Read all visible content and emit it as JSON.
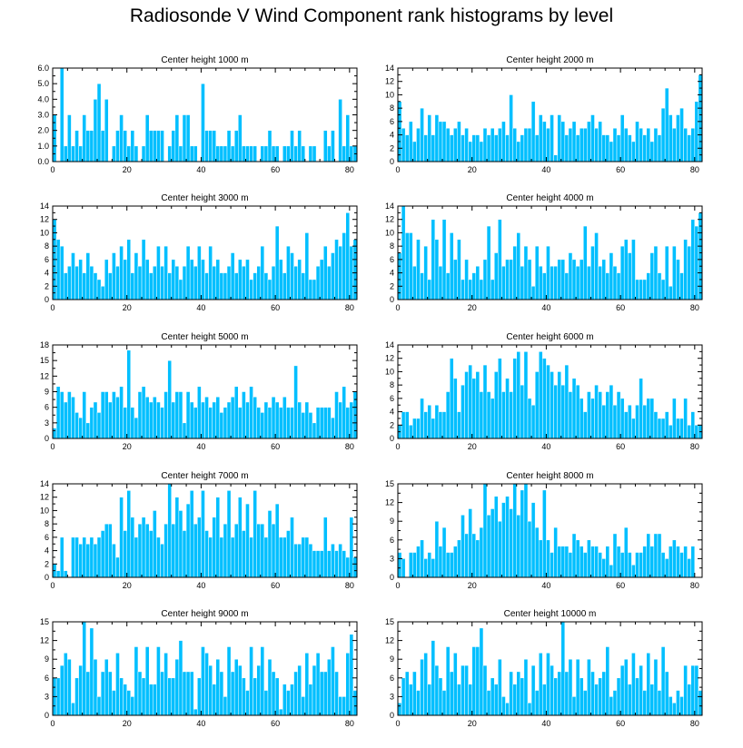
{
  "title": "Radiosonde V Wind Component rank histograms by level",
  "colors": {
    "bar": "#00bfff",
    "bar_edge": "#ffffff",
    "axis": "#000000"
  },
  "chart_data": [
    {
      "type": "bar",
      "title": "Center height 1000 m",
      "xlim": [
        0,
        82
      ],
      "ylim": [
        0,
        6
      ],
      "xticks": [
        0,
        20,
        40,
        60,
        80
      ],
      "yticks": [
        0,
        1,
        2,
        3,
        4,
        5,
        6
      ],
      "ytick_labels": [
        "0.0",
        "1.0",
        "2.0",
        "3.0",
        "4.0",
        "5.0",
        "6.0"
      ],
      "values": [
        3,
        0,
        6,
        1,
        3,
        1,
        2,
        1,
        3,
        2,
        2,
        4,
        5,
        2,
        4,
        0,
        1,
        2,
        3,
        2,
        1,
        2,
        1,
        0,
        1,
        3,
        2,
        2,
        2,
        2,
        0,
        1,
        2,
        3,
        1,
        3,
        3,
        1,
        1,
        0,
        5,
        2,
        2,
        2,
        1,
        1,
        1,
        2,
        1,
        2,
        3,
        1,
        1,
        1,
        1,
        0,
        1,
        1,
        2,
        1,
        1,
        0,
        1,
        1,
        2,
        1,
        2,
        1,
        0,
        1,
        1,
        0,
        0,
        2,
        1,
        2,
        0,
        4,
        1,
        3,
        1,
        1
      ]
    },
    {
      "type": "bar",
      "title": "Center height 2000 m",
      "xlim": [
        0,
        82
      ],
      "ylim": [
        0,
        14
      ],
      "xticks": [
        0,
        20,
        40,
        60,
        80
      ],
      "yticks": [
        0,
        2,
        4,
        6,
        8,
        10,
        12,
        14
      ],
      "ytick_labels": [
        "0",
        "2",
        "4",
        "6",
        "8",
        "10",
        "12",
        "14"
      ],
      "values": [
        9,
        5,
        4,
        6,
        3,
        5,
        8,
        4,
        7,
        4,
        7,
        6,
        6,
        5,
        4,
        5,
        6,
        4,
        5,
        3,
        4,
        4,
        3,
        5,
        4,
        5,
        4,
        5,
        6,
        4,
        10,
        5,
        3,
        4,
        5,
        5,
        9,
        4,
        7,
        6,
        5,
        7,
        1,
        7,
        6,
        4,
        5,
        6,
        4,
        5,
        5,
        6,
        7,
        5,
        6,
        4,
        4,
        3,
        5,
        4,
        7,
        5,
        4,
        3,
        6,
        5,
        4,
        5,
        3,
        5,
        4,
        8,
        11,
        7,
        5,
        7,
        8,
        5,
        4,
        5,
        9,
        13
      ]
    },
    {
      "type": "bar",
      "title": "Center height 3000 m",
      "xlim": [
        0,
        82
      ],
      "ylim": [
        0,
        14
      ],
      "xticks": [
        0,
        20,
        40,
        60,
        80
      ],
      "yticks": [
        0,
        2,
        4,
        6,
        8,
        10,
        12,
        14
      ],
      "ytick_labels": [
        "0",
        "2",
        "4",
        "6",
        "8",
        "10",
        "12",
        "14"
      ],
      "values": [
        12,
        9,
        8,
        4,
        5,
        7,
        5,
        6,
        4,
        7,
        5,
        4,
        3,
        2,
        6,
        4,
        7,
        5,
        8,
        6,
        9,
        4,
        7,
        5,
        9,
        6,
        4,
        5,
        8,
        5,
        8,
        4,
        6,
        5,
        3,
        5,
        8,
        6,
        5,
        8,
        6,
        4,
        8,
        5,
        6,
        4,
        4,
        5,
        7,
        4,
        6,
        5,
        6,
        3,
        4,
        5,
        8,
        4,
        3,
        5,
        11,
        6,
        4,
        8,
        7,
        5,
        6,
        4,
        10,
        3,
        3,
        5,
        6,
        8,
        5,
        7,
        9,
        8,
        10,
        13,
        8,
        9
      ]
    },
    {
      "type": "bar",
      "title": "Center height 4000 m",
      "xlim": [
        0,
        82
      ],
      "ylim": [
        0,
        14
      ],
      "xticks": [
        0,
        20,
        40,
        60,
        80
      ],
      "yticks": [
        0,
        2,
        4,
        6,
        8,
        10,
        12,
        14
      ],
      "ytick_labels": [
        "0",
        "2",
        "4",
        "6",
        "8",
        "10",
        "12",
        "14"
      ],
      "values": [
        7,
        14,
        10,
        10,
        5,
        9,
        4,
        8,
        3,
        12,
        9,
        5,
        12,
        4,
        10,
        6,
        9,
        3,
        6,
        3,
        4,
        5,
        3,
        6,
        11,
        3,
        7,
        12,
        5,
        6,
        6,
        8,
        10,
        5,
        8,
        6,
        2,
        8,
        5,
        4,
        8,
        5,
        5,
        6,
        6,
        4,
        7,
        6,
        5,
        6,
        11,
        5,
        8,
        10,
        5,
        6,
        4,
        7,
        5,
        4,
        8,
        9,
        7,
        9,
        3,
        3,
        3,
        4,
        7,
        8,
        4,
        3,
        8,
        2,
        8,
        6,
        4,
        9,
        8,
        12,
        11,
        13
      ]
    },
    {
      "type": "bar",
      "title": "Center height 5000 m",
      "xlim": [
        0,
        82
      ],
      "ylim": [
        0,
        18
      ],
      "xticks": [
        0,
        20,
        40,
        60,
        80
      ],
      "yticks": [
        0,
        3,
        6,
        9,
        12,
        15,
        18
      ],
      "ytick_labels": [
        "0",
        "3",
        "6",
        "9",
        "12",
        "15",
        "18"
      ],
      "values": [
        2,
        10,
        9,
        7,
        9,
        8,
        5,
        4,
        9,
        3,
        6,
        7,
        5,
        9,
        9,
        7,
        9,
        8,
        10,
        6,
        17,
        6,
        4,
        9,
        10,
        8,
        7,
        8,
        7,
        6,
        9,
        15,
        7,
        9,
        9,
        3,
        9,
        7,
        6,
        10,
        7,
        8,
        6,
        7,
        8,
        5,
        6,
        7,
        8,
        10,
        6,
        9,
        7,
        10,
        8,
        6,
        5,
        7,
        6,
        8,
        7,
        6,
        8,
        6,
        6,
        14,
        7,
        5,
        7,
        5,
        3,
        6,
        6,
        6,
        6,
        4,
        9,
        7,
        10,
        6,
        7,
        9
      ]
    },
    {
      "type": "bar",
      "title": "Center height 6000 m",
      "xlim": [
        0,
        82
      ],
      "ylim": [
        0,
        14
      ],
      "xticks": [
        0,
        20,
        40,
        60,
        80
      ],
      "yticks": [
        0,
        2,
        4,
        6,
        8,
        10,
        12,
        14
      ],
      "ytick_labels": [
        "0",
        "2",
        "4",
        "6",
        "8",
        "10",
        "12",
        "14"
      ],
      "values": [
        2,
        4,
        4,
        2,
        3,
        3,
        6,
        4,
        5,
        3,
        5,
        4,
        4,
        7,
        12,
        9,
        4,
        8,
        10,
        11,
        9,
        10,
        7,
        11,
        7,
        6,
        10,
        12,
        7,
        9,
        7,
        12,
        13,
        8,
        13,
        6,
        5,
        10,
        13,
        12,
        11,
        10,
        8,
        10,
        8,
        11,
        7,
        9,
        8,
        6,
        4,
        7,
        6,
        8,
        7,
        5,
        7,
        8,
        5,
        7,
        6,
        4,
        5,
        3,
        5,
        9,
        5,
        6,
        6,
        4,
        3,
        3,
        4,
        2,
        6,
        3,
        3,
        6,
        2,
        4,
        2,
        2
      ]
    },
    {
      "type": "bar",
      "title": "Center height 7000 m",
      "xlim": [
        0,
        82
      ],
      "ylim": [
        0,
        14
      ],
      "xticks": [
        0,
        20,
        40,
        60,
        80
      ],
      "yticks": [
        0,
        2,
        4,
        6,
        8,
        10,
        12,
        14
      ],
      "ytick_labels": [
        "0",
        "2",
        "4",
        "6",
        "8",
        "10",
        "12",
        "14"
      ],
      "values": [
        2,
        1,
        6,
        1,
        0,
        6,
        6,
        5,
        6,
        5,
        6,
        5,
        6,
        7,
        8,
        8,
        5,
        3,
        12,
        7,
        13,
        9,
        6,
        8,
        9,
        8,
        7,
        10,
        6,
        5,
        8,
        14,
        8,
        12,
        10,
        7,
        11,
        13,
        8,
        9,
        13,
        7,
        6,
        9,
        12,
        6,
        8,
        13,
        6,
        8,
        12,
        7,
        11,
        6,
        13,
        8,
        8,
        6,
        10,
        8,
        11,
        6,
        6,
        7,
        9,
        5,
        5,
        6,
        6,
        5,
        4,
        4,
        4,
        9,
        4,
        5,
        4,
        5,
        4,
        3,
        9,
        3
      ]
    },
    {
      "type": "bar",
      "title": "Center height 8000 m",
      "xlim": [
        0,
        82
      ],
      "ylim": [
        0,
        15
      ],
      "xticks": [
        0,
        20,
        40,
        60,
        80
      ],
      "yticks": [
        0,
        3,
        6,
        9,
        12,
        15
      ],
      "ytick_labels": [
        "0",
        "3",
        "6",
        "9",
        "12",
        "15"
      ],
      "values": [
        4,
        3,
        0,
        4,
        4,
        5,
        6,
        3,
        4,
        3,
        9,
        5,
        8,
        4,
        4,
        5,
        6,
        10,
        7,
        11,
        7,
        6,
        8,
        15,
        10,
        11,
        13,
        9,
        12,
        13,
        11,
        15,
        10,
        14,
        15,
        9,
        12,
        8,
        6,
        14,
        6,
        4,
        8,
        5,
        5,
        5,
        4,
        7,
        6,
        5,
        4,
        6,
        5,
        5,
        4,
        3,
        5,
        2,
        7,
        5,
        4,
        8,
        4,
        2,
        4,
        4,
        5,
        7,
        5,
        7,
        7,
        4,
        3,
        5,
        6,
        5,
        4,
        5,
        3,
        5
      ]
    },
    {
      "type": "bar",
      "title": "Center height 9000 m",
      "xlim": [
        0,
        82
      ],
      "ylim": [
        0,
        15
      ],
      "xticks": [
        0,
        20,
        40,
        60,
        80
      ],
      "yticks": [
        0,
        3,
        6,
        9,
        12,
        15
      ],
      "ytick_labels": [
        "0",
        "3",
        "6",
        "9",
        "12",
        "15"
      ],
      "values": [
        6,
        6,
        8,
        10,
        9,
        2,
        6,
        8,
        15,
        7,
        14,
        9,
        3,
        7,
        9,
        7,
        4,
        10,
        6,
        5,
        4,
        3,
        11,
        7,
        6,
        11,
        5,
        5,
        11,
        7,
        10,
        6,
        6,
        9,
        12,
        7,
        7,
        7,
        1,
        6,
        11,
        10,
        8,
        5,
        9,
        7,
        3,
        11,
        7,
        9,
        8,
        6,
        4,
        11,
        6,
        8,
        11,
        4,
        9,
        7,
        6,
        1,
        5,
        4,
        5,
        7,
        8,
        3,
        10,
        5,
        8,
        10,
        7,
        7,
        9,
        11,
        7,
        3,
        3,
        10,
        13,
        4
      ]
    },
    {
      "type": "bar",
      "title": "Center height 10000 m",
      "xlim": [
        0,
        82
      ],
      "ylim": [
        0,
        15
      ],
      "xticks": [
        0,
        20,
        40,
        60,
        80
      ],
      "yticks": [
        0,
        3,
        6,
        9,
        12,
        15
      ],
      "ytick_labels": [
        "0",
        "3",
        "6",
        "9",
        "12",
        "15"
      ],
      "values": [
        2,
        6,
        7,
        5,
        7,
        4,
        9,
        10,
        5,
        12,
        8,
        6,
        4,
        11,
        7,
        10,
        5,
        8,
        8,
        5,
        11,
        11,
        14,
        8,
        4,
        6,
        5,
        9,
        3,
        2,
        7,
        5,
        7,
        6,
        9,
        2,
        8,
        4,
        10,
        5,
        10,
        8,
        6,
        7,
        15,
        7,
        9,
        3,
        9,
        6,
        4,
        9,
        7,
        5,
        6,
        7,
        11,
        3,
        4,
        6,
        8,
        9,
        5,
        10,
        6,
        8,
        4,
        10,
        5,
        9,
        4,
        11,
        7,
        3,
        2,
        4,
        3,
        8,
        5,
        8,
        8,
        4
      ]
    }
  ]
}
